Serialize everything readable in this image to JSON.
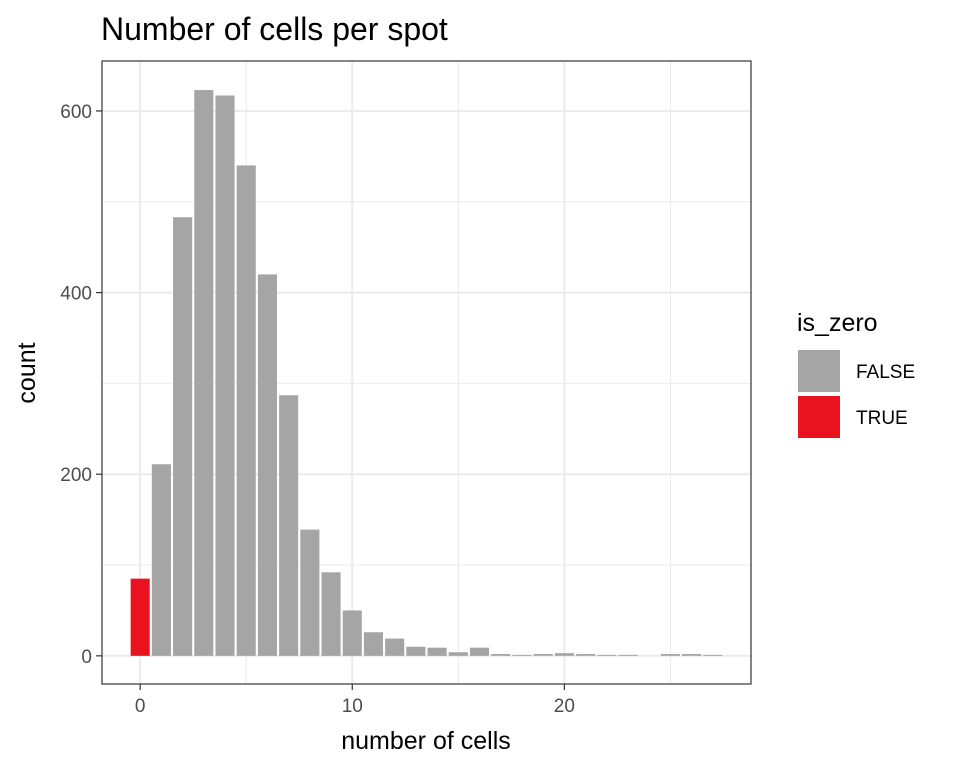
{
  "chart_data": {
    "type": "bar",
    "title": "Number of cells per spot",
    "xlabel": "number of cells",
    "ylabel": "count",
    "x": [
      0,
      1,
      2,
      3,
      4,
      5,
      6,
      7,
      8,
      9,
      10,
      11,
      12,
      13,
      14,
      15,
      16,
      17,
      18,
      19,
      20,
      21,
      22,
      23,
      24,
      25,
      26,
      27
    ],
    "values": [
      85,
      211,
      483,
      623,
      617,
      540,
      420,
      287,
      139,
      92,
      50,
      26,
      19,
      10,
      9,
      4,
      9,
      2,
      1,
      2,
      3,
      2,
      1,
      1,
      0,
      2,
      2,
      1
    ],
    "is_zero": [
      true,
      false,
      false,
      false,
      false,
      false,
      false,
      false,
      false,
      false,
      false,
      false,
      false,
      false,
      false,
      false,
      false,
      false,
      false,
      false,
      false,
      false,
      false,
      false,
      false,
      false,
      false,
      false
    ],
    "xlim": [
      -1.8,
      28.8
    ],
    "ylim": [
      -31,
      655
    ],
    "x_ticks": [
      0,
      10,
      20
    ],
    "y_ticks": [
      0,
      200,
      400,
      600
    ],
    "grid": true,
    "legend": {
      "title": "is_zero",
      "position": "right",
      "entries": [
        {
          "label": "FALSE",
          "color": "#a5a5a5"
        },
        {
          "label": "TRUE",
          "color": "#e8131f"
        }
      ]
    }
  }
}
